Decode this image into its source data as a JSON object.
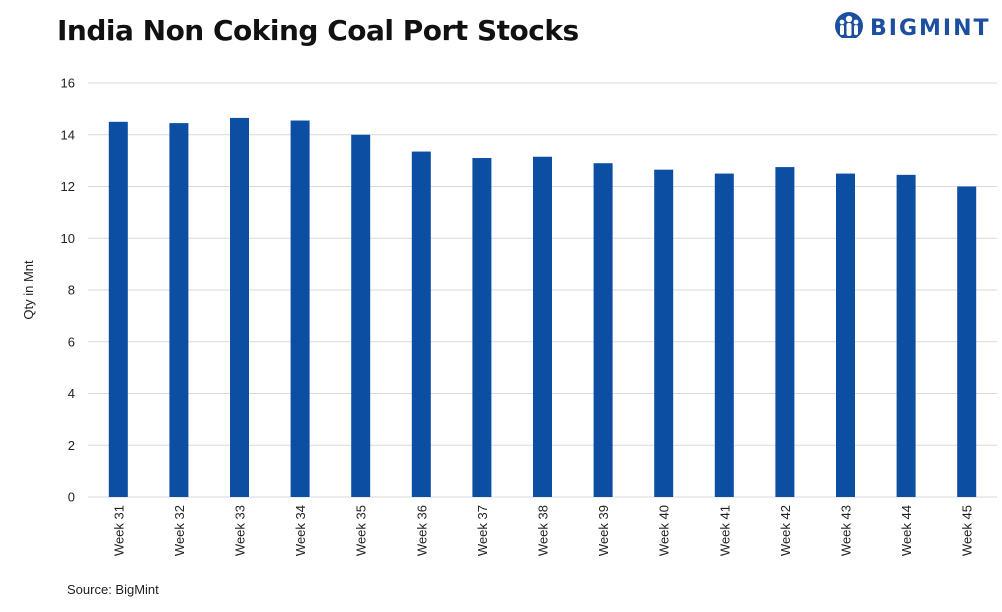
{
  "title": "India Non Coking Coal Port Stocks",
  "logo": {
    "text": "BIGMINT",
    "icon": "bigmint-figure-logo",
    "color": "#1d4fa1"
  },
  "source": "Source: BigMint",
  "chart_data": {
    "type": "bar",
    "title": "India Non Coking Coal Port Stocks",
    "xlabel": "",
    "ylabel": "Qty in Mnt",
    "categories": [
      "Week 31",
      "Week 32",
      "Week 33",
      "Week 34",
      "Week 35",
      "Week 36",
      "Week 37",
      "Week 38",
      "Week 39",
      "Week 40",
      "Week 41",
      "Week 42",
      "Week 43",
      "Week 44",
      "Week 45"
    ],
    "values": [
      14.5,
      14.45,
      14.65,
      14.55,
      14.0,
      13.35,
      13.1,
      13.15,
      12.9,
      12.65,
      12.5,
      12.75,
      12.5,
      12.45,
      12.0
    ],
    "ylim": [
      0,
      16
    ],
    "yticks": [
      0,
      2,
      4,
      6,
      8,
      10,
      12,
      14,
      16
    ],
    "grid": true,
    "legend": "none",
    "bar_color": "#0b4ea2",
    "grid_color": "#d9d9d9"
  }
}
